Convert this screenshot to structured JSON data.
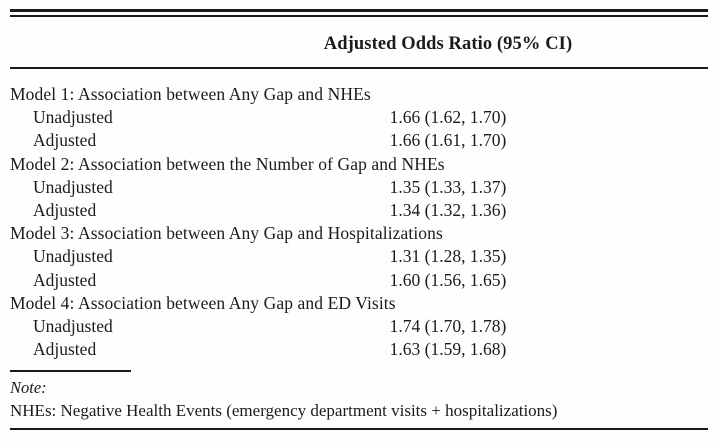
{
  "table": {
    "header": "Adjusted Odds Ratio (95% CI)",
    "sections": [
      {
        "heading": "Model 1: Association between Any Gap and NHEs",
        "rows": [
          {
            "label": "Unadjusted",
            "value": "1.66 (1.62, 1.70)"
          },
          {
            "label": "Adjusted",
            "value": "1.66 (1.61, 1.70)"
          }
        ]
      },
      {
        "heading": "Model 2: Association between the Number of Gap and NHEs",
        "rows": [
          {
            "label": "Unadjusted",
            "value": "1.35 (1.33, 1.37)"
          },
          {
            "label": "Adjusted",
            "value": "1.34 (1.32, 1.36)"
          }
        ]
      },
      {
        "heading": "Model 3: Association between Any Gap and Hospitalizations",
        "rows": [
          {
            "label": "Unadjusted",
            "value": "1.31 (1.28, 1.35)"
          },
          {
            "label": "Adjusted",
            "value": "1.60 (1.56, 1.65)"
          }
        ]
      },
      {
        "heading": "Model 4: Association between Any Gap and ED Visits",
        "rows": [
          {
            "label": "Unadjusted",
            "value": "1.74 (1.70, 1.78)"
          },
          {
            "label": "Adjusted",
            "value": "1.63 (1.59, 1.68)"
          }
        ]
      }
    ],
    "footnote": {
      "note_label": "Note:",
      "note_text": "NHEs: Negative Health Events (emergency department visits + hospitalizations)"
    },
    "colors": {
      "text": "#1b1b1b",
      "rule": "#1b1b1b",
      "background": "#fefefe"
    }
  }
}
